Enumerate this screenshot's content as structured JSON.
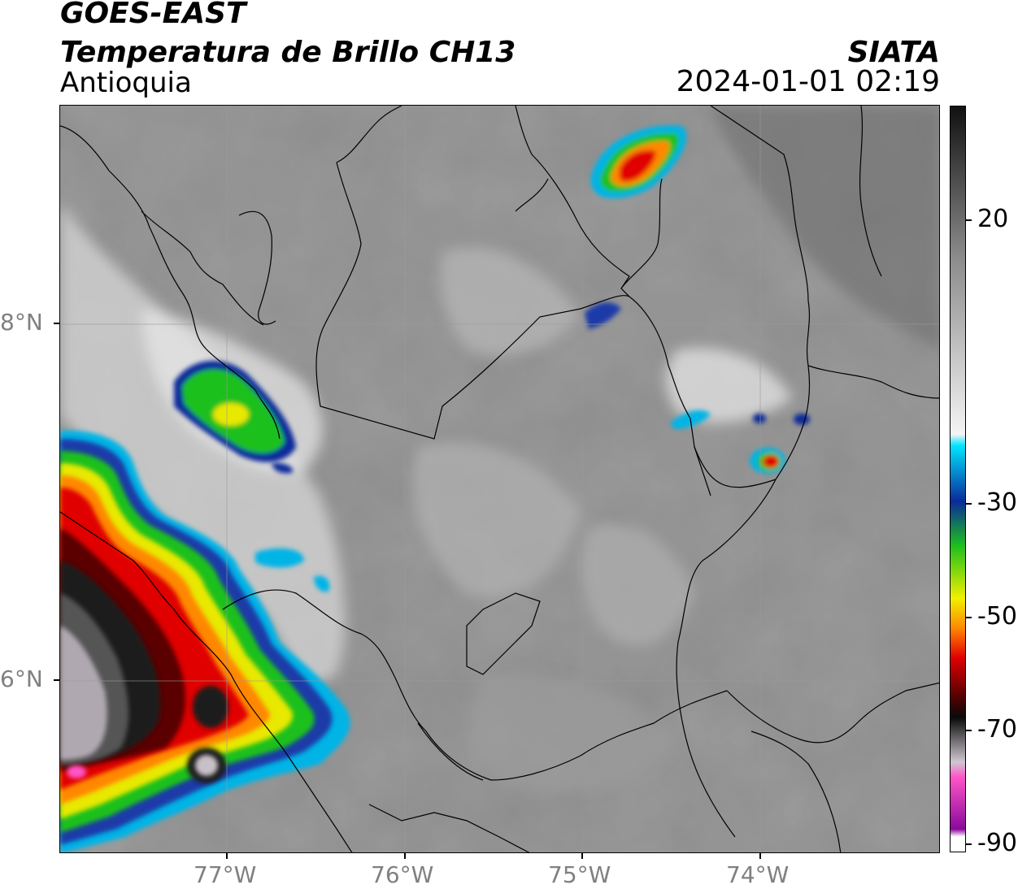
{
  "header": {
    "title_line1": "GOES-EAST",
    "title_line2": "Temperatura de Brillo CH13",
    "region": "Antioquia",
    "organization": "SIATA",
    "timestamp": "2024-01-01 02:19"
  },
  "map": {
    "lat_labels": [
      "8°N",
      "6°N"
    ],
    "lon_labels": [
      "77°W",
      "76°W",
      "75°W",
      "74°W"
    ]
  },
  "colorbar": {
    "tick_labels": [
      "20",
      "-30",
      "-50",
      "-70",
      "-90"
    ],
    "colors": {
      "warm_grey_top": "#111111",
      "grey_mid": "#8a8a8a",
      "white": "#f4f4f4",
      "cyan": "#00e5ff",
      "blue": "#0a2a9a",
      "green": "#1ec01e",
      "yellow": "#f0f000",
      "orange": "#ff8800",
      "red": "#e00000",
      "dark_red": "#5a0000",
      "black": "#0a0a0a",
      "light_grey": "#d0c8d0",
      "pink": "#ff55c8",
      "purple": "#8a0a9a"
    }
  }
}
